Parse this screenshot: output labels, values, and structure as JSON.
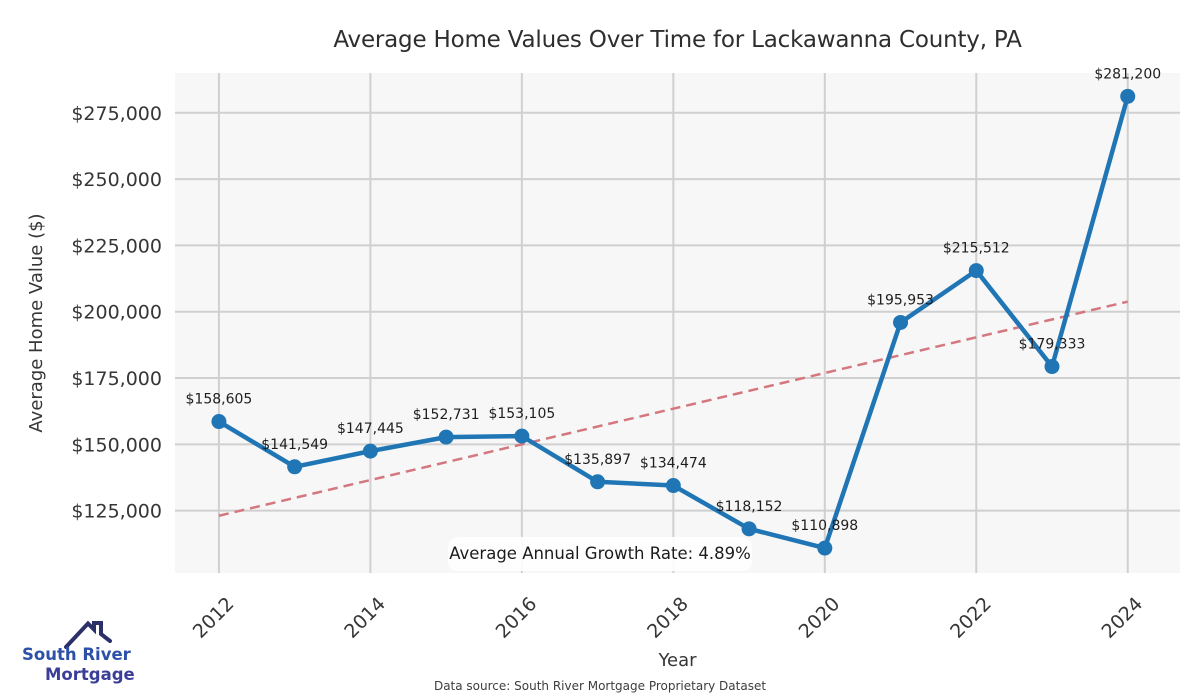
{
  "chart_data": {
    "type": "line",
    "title": "Average Home Values Over Time for Lackawanna County, PA",
    "xlabel": "Year",
    "ylabel": "Average Home Value ($)",
    "x": [
      2012,
      2013,
      2014,
      2015,
      2016,
      2017,
      2018,
      2019,
      2020,
      2021,
      2022,
      2023,
      2024
    ],
    "values": [
      158605,
      141549,
      147445,
      152731,
      153105,
      135897,
      134474,
      118152,
      110898,
      195953,
      215512,
      179333,
      281200
    ],
    "point_labels": [
      "$158,605",
      "$141,549",
      "$147,445",
      "$152,731",
      "$153,105",
      "$135,897",
      "$134,474",
      "$118,152",
      "$110,898",
      "$195,953",
      "$215,512",
      "$179,333",
      "$281,200"
    ],
    "xticks": [
      2012,
      2014,
      2016,
      2018,
      2020,
      2022,
      2024
    ],
    "xtick_labels": [
      "2012",
      "2014",
      "2016",
      "2018",
      "2020",
      "2022",
      "2024"
    ],
    "yticks": [
      125000,
      150000,
      175000,
      200000,
      225000,
      250000,
      275000
    ],
    "ytick_labels": [
      "$125,000",
      "$150,000",
      "$175,000",
      "$200,000",
      "$225,000",
      "$250,000",
      "$275,000"
    ],
    "xlim": [
      2011.42,
      2024.69
    ],
    "ylim": [
      101500,
      290000
    ],
    "grid": true,
    "legend": "none",
    "line_color": "#2076b5",
    "marker": "circle",
    "plot_bg": "#f7f7f7",
    "grid_color": "#d0d0d0",
    "tick_color": "#363636",
    "label_color": "#1e1e1e",
    "trendline": {
      "style": "dashed",
      "color": "#d4777f",
      "start_year": 2012,
      "start_value": 123088,
      "end_year": 2024,
      "end_value": 203812
    },
    "annotation": "Average Annual Growth Rate: 4.89%"
  },
  "footer": {
    "data_source": "Data source: South River Mortgage Proprietary Dataset"
  },
  "logo": {
    "line1": "South River",
    "line2": "Mortgage",
    "text_color1": "#2c51a8",
    "text_color2": "#3b3e99",
    "house_color": "#2b3069"
  }
}
